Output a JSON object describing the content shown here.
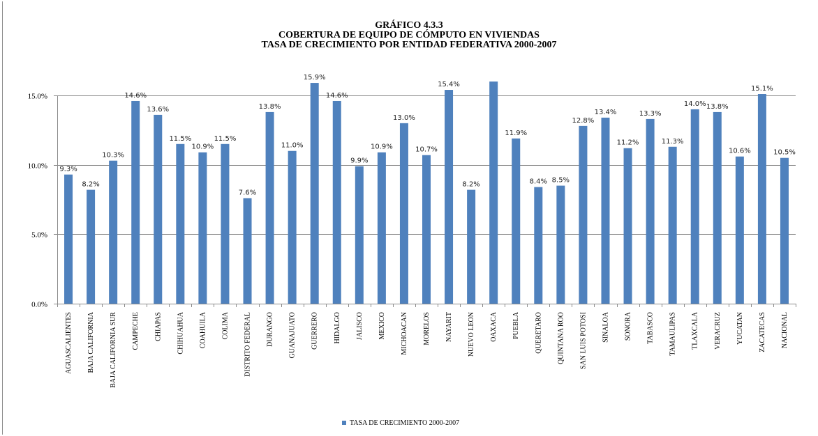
{
  "chart_data": {
    "type": "bar",
    "title_lines": [
      "GRÁFICO 4.3.3",
      "COBERTURA DE EQUIPO DE CÓMPUTO EN VIVIENDAS",
      "TASA DE CRECIMIENTO POR ENTIDAD FEDERATIVA 2000-2007"
    ],
    "categories": [
      "AGUASCALIENTES",
      "BAJA CALIFORNIA",
      "BAJA CALIFORNIA SUR",
      "CAMPECHE",
      "CHIAPAS",
      "CHIHUAHUA",
      "COAHUILA",
      "COLIMA",
      "DISTRITO FEDERAL",
      "DURANGO",
      "GUANAJUATO",
      "GUERRERO",
      "HIDALGO",
      "JALISCO",
      "MEXICO",
      "MICHOACAN",
      "MORELOS",
      "NAYARIT",
      "NUEVO LEON",
      "OAXACA",
      "PUEBLA",
      "QUERETARO",
      "QUINTANA ROO",
      "SAN LUIS POTOSI",
      "SINALOA",
      "SONORA",
      "TABASCO",
      "TAMAULIPAS",
      "TLAXCALA",
      "VERACRUZ",
      "YUCATAN",
      "ZACATECAS",
      "NACIONAL"
    ],
    "series": [
      {
        "name": "TASA DE CRECIMIENTO  2000-2007",
        "values": [
          9.3,
          8.2,
          10.3,
          14.6,
          13.6,
          11.5,
          10.9,
          11.5,
          7.6,
          13.8,
          11.0,
          15.9,
          14.6,
          9.9,
          10.9,
          13.0,
          10.7,
          15.4,
          8.2,
          16.0,
          11.9,
          8.4,
          8.5,
          12.8,
          13.4,
          11.2,
          13.3,
          11.3,
          14.0,
          13.8,
          10.6,
          15.1,
          10.5
        ],
        "labels": [
          "9.3%",
          "8.2%",
          "10.3%",
          "14.6%",
          "13.6%",
          "11.5%",
          "10.9%",
          "11.5%",
          "7.6%",
          "13.8%",
          "11.0%",
          "15.9%",
          "14.6%",
          "9.9%",
          "10.9%",
          "13.0%",
          "10.7%",
          "15.4%",
          "8.2%",
          "",
          "11.9%",
          "8.4%",
          "8.5%",
          "12.8%",
          "13.4%",
          "11.2%",
          "13.3%",
          "11.3%",
          "14.0%",
          "13.8%",
          "10.6%",
          "15.1%",
          "10.5%"
        ]
      }
    ],
    "yticks": [
      0,
      5,
      10,
      15
    ],
    "ytick_labels": [
      "0.0%",
      "5.0%",
      "10.0%",
      "15.0%"
    ],
    "ylim": [
      0,
      15
    ],
    "grid": true,
    "legend_position": "bottom",
    "colors": {
      "bar": "#4f81bd",
      "grid": "#8c8c8c",
      "axis": "#8c8c8c"
    }
  }
}
